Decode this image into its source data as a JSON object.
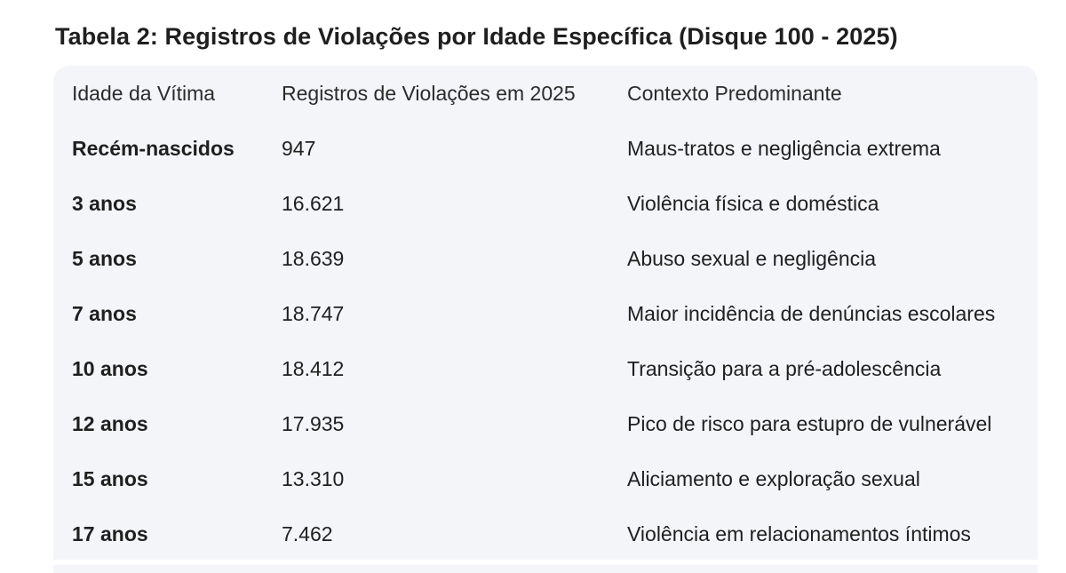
{
  "title": "Tabela 2: Registros de Violações por Idade Específica (Disque 100 - 2025)",
  "table": {
    "columns": [
      "Idade da Vítima",
      "Registros de Violações em 2025",
      "Contexto Predominante"
    ],
    "rows": [
      {
        "age": "Recém-nascidos",
        "count": "947",
        "context": "Maus-tratos e negligência extrema"
      },
      {
        "age": "3 anos",
        "count": "16.621",
        "context": "Violência física e doméstica"
      },
      {
        "age": "5 anos",
        "count": "18.639",
        "context": "Abuso sexual e negligência"
      },
      {
        "age": "7 anos",
        "count": "18.747",
        "context": "Maior incidência de denúncias escolares"
      },
      {
        "age": "10 anos",
        "count": "18.412",
        "context": "Transição para a pré-adolescência"
      },
      {
        "age": "12 anos",
        "count": "17.935",
        "context": "Pico de risco para estupro de vulnerável"
      },
      {
        "age": "15 anos",
        "count": "13.310",
        "context": "Aliciamento e exploração sexual"
      },
      {
        "age": "17 anos",
        "count": "7.462",
        "context": "Violência em relacionamentos íntimos"
      }
    ]
  },
  "colors": {
    "card_background": "#f4f5f9",
    "text": "#1f1f1f"
  }
}
